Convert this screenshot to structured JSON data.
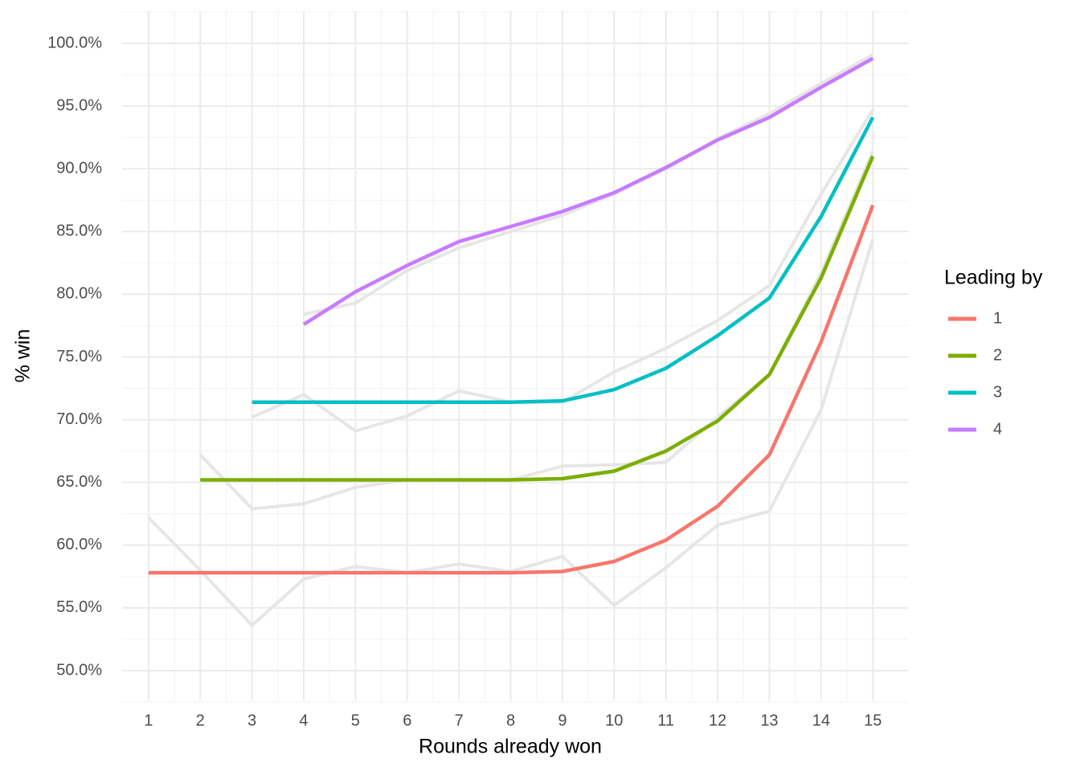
{
  "chart_data": {
    "type": "line",
    "x_label": "Rounds already won",
    "y_label": "% win",
    "x": [
      1,
      2,
      3,
      4,
      5,
      6,
      7,
      8,
      9,
      10,
      11,
      12,
      13,
      14,
      15
    ],
    "xlim": [
      0.49,
      15.68
    ],
    "xticks": [
      1,
      2,
      3,
      4,
      5,
      6,
      7,
      8,
      9,
      10,
      11,
      12,
      13,
      14,
      15
    ],
    "xminor": [
      1.5,
      2.5,
      3.5,
      4.5,
      5.5,
      6.5,
      7.5,
      8.5,
      9.5,
      10.5,
      11.5,
      12.5,
      13.5,
      14.5
    ],
    "ylim": [
      47.63,
      102.56
    ],
    "yticks": [
      {
        "value": 50,
        "label": "50.0%"
      },
      {
        "value": 55,
        "label": "55.0%"
      },
      {
        "value": 60,
        "label": "60.0%"
      },
      {
        "value": 65,
        "label": "65.0%"
      },
      {
        "value": 70,
        "label": "70.0%"
      },
      {
        "value": 75,
        "label": "75.0%"
      },
      {
        "value": 80,
        "label": "80.0%"
      },
      {
        "value": 85,
        "label": "85.0%"
      },
      {
        "value": 90,
        "label": "90.0%"
      },
      {
        "value": 95,
        "label": "95.0%"
      },
      {
        "value": 100,
        "label": "100.0%"
      }
    ],
    "yminor": [
      47.5,
      52.5,
      57.5,
      62.5,
      67.5,
      72.5,
      77.5,
      82.5,
      87.5,
      92.5,
      97.5,
      102.5
    ],
    "grid": true,
    "legend_title": "Leading by",
    "legend_position": "right",
    "series": [
      {
        "name": "1",
        "color": "#F8766D",
        "values": [
          57.8,
          57.8,
          57.8,
          57.8,
          57.8,
          57.8,
          57.8,
          57.8,
          57.9,
          58.7,
          60.4,
          63.1,
          67.2,
          76.2,
          87.1
        ]
      },
      {
        "name": "2",
        "color": "#7CAE00",
        "values": [
          null,
          65.2,
          65.2,
          65.2,
          65.2,
          65.2,
          65.2,
          65.2,
          65.3,
          65.9,
          67.5,
          69.9,
          73.6,
          81.3,
          91.0
        ]
      },
      {
        "name": "3",
        "color": "#00BFC4",
        "values": [
          null,
          null,
          71.4,
          71.4,
          71.4,
          71.4,
          71.4,
          71.4,
          71.5,
          72.4,
          74.1,
          76.7,
          79.7,
          86.2,
          94.1
        ]
      },
      {
        "name": "4",
        "color": "#C77CFF",
        "values": [
          null,
          null,
          null,
          77.6,
          80.2,
          82.3,
          84.2,
          85.4,
          86.6,
          88.1,
          90.1,
          92.3,
          94.1,
          96.5,
          98.8
        ]
      }
    ],
    "reference_series": [
      {
        "color": "#e6e6e6",
        "values": [
          62.2,
          58.0,
          53.6,
          57.3,
          58.3,
          57.8,
          58.5,
          57.9,
          59.1,
          55.2,
          58.2,
          61.6,
          62.7,
          70.8,
          84.4
        ]
      },
      {
        "color": "#e6e6e6",
        "values": [
          null,
          67.2,
          62.9,
          63.3,
          64.6,
          65.2,
          65.2,
          65.2,
          66.3,
          66.4,
          66.6,
          70.2,
          73.6,
          81.7,
          91.4
        ]
      },
      {
        "color": "#e6e6e6",
        "values": [
          null,
          null,
          70.2,
          72.0,
          69.1,
          70.3,
          72.3,
          71.4,
          71.4,
          73.8,
          75.7,
          77.9,
          80.7,
          88.0,
          94.7
        ]
      },
      {
        "color": "#e6e6e6",
        "values": [
          null,
          null,
          null,
          78.4,
          79.3,
          81.9,
          83.7,
          85.0,
          86.3,
          88.0,
          90.0,
          92.4,
          94.4,
          96.8,
          99.1
        ]
      }
    ]
  }
}
